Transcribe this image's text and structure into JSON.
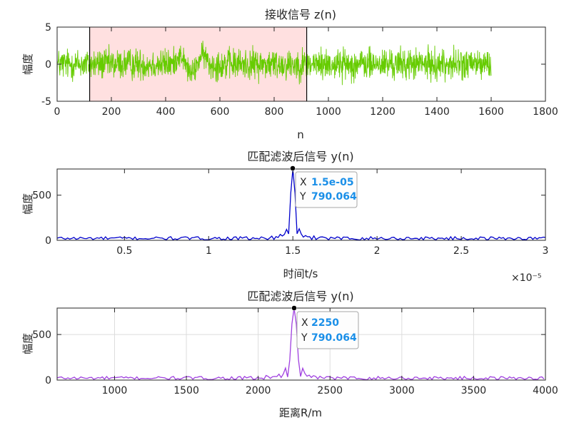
{
  "chart_data": [
    {
      "type": "line",
      "title": "接收信号 z(n)",
      "xlabel": "n",
      "ylabel": "幅度",
      "xlim": [
        0,
        1800
      ],
      "ylim": [
        -5,
        5
      ],
      "xticks": [
        0,
        200,
        400,
        600,
        800,
        1000,
        1200,
        1400,
        1600,
        1800
      ],
      "yticks": [
        -5,
        0,
        5
      ],
      "grid": false,
      "series": [
        {
          "color": "#66cc00",
          "x_range": [
            0,
            1600
          ],
          "samples": 1601,
          "amplitude_range": [
            -3.3,
            3.7
          ],
          "note_window": [
            120,
            920
          ]
        }
      ],
      "highlight_region": {
        "x": [
          120,
          920
        ],
        "y": [
          -5,
          5
        ],
        "fill": "#ffe0e0"
      }
    },
    {
      "type": "line",
      "title": "匹配滤波后信号 y(n)",
      "xlabel": "时间t/s",
      "ylabel": "幅度",
      "xlim": [
        0.1,
        3
      ],
      "ylim": [
        0,
        790.064
      ],
      "xticks": [
        0.5,
        1,
        1.5,
        2,
        2.5,
        3
      ],
      "yticks": [
        0,
        500
      ],
      "x_multiplier": "×10⁻⁵",
      "grid": false,
      "series": [
        {
          "color": "#0000cc",
          "peak_x": 1.5,
          "peak_y": 790.064
        }
      ],
      "datatip": {
        "x_label": "X",
        "x_value": "1.5e-05",
        "y_label": "Y",
        "y_value": "790.064"
      }
    },
    {
      "type": "line",
      "title": "匹配滤波后信号 y(n)",
      "xlabel": "距离R/m",
      "ylabel": "幅度",
      "xlim": [
        600,
        4000
      ],
      "ylim": [
        0,
        790.064
      ],
      "xticks": [
        1000,
        1500,
        2000,
        2500,
        3000,
        3500,
        4000
      ],
      "yticks": [
        0,
        500
      ],
      "grid": true,
      "series": [
        {
          "color": "#a040e0",
          "peak_x": 2250,
          "peak_y": 790.064
        }
      ],
      "datatip": {
        "x_label": "X",
        "x_value": "2250",
        "y_label": "Y",
        "y_value": "790.064"
      }
    }
  ]
}
